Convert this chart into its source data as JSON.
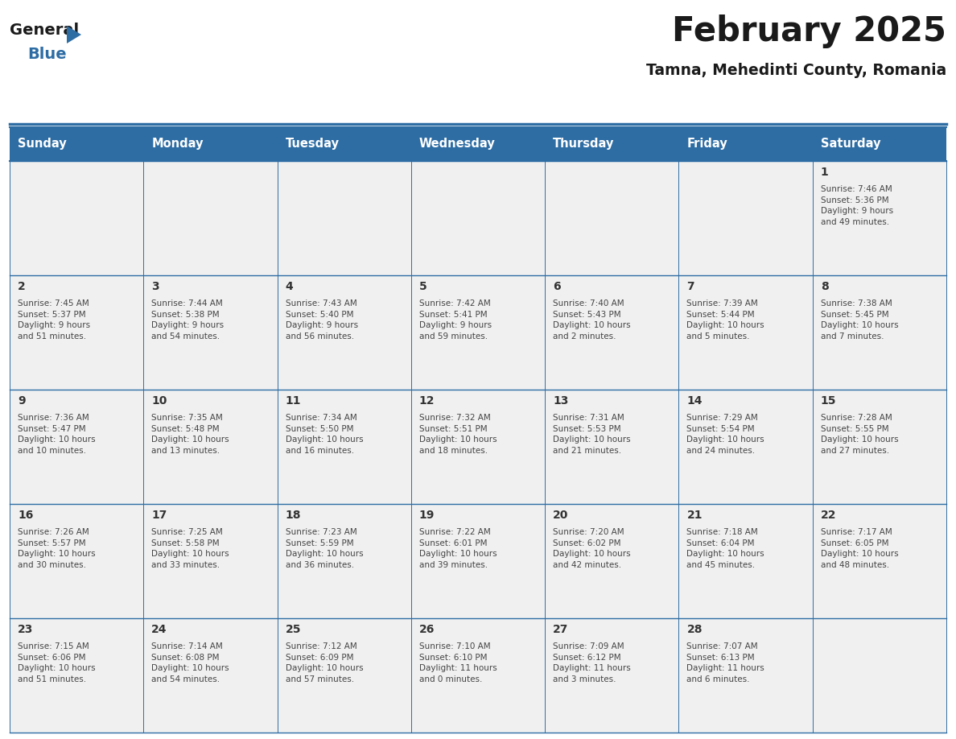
{
  "title": "February 2025",
  "subtitle": "Tamna, Mehedinti County, Romania",
  "header_bg": "#2E6DA4",
  "header_text": "#FFFFFF",
  "cell_bg": "#F0F0F0",
  "text_color": "#444444",
  "day_number_color": "#333333",
  "day_headers": [
    "Sunday",
    "Monday",
    "Tuesday",
    "Wednesday",
    "Thursday",
    "Friday",
    "Saturday"
  ],
  "weeks": [
    [
      {
        "day": "",
        "info": ""
      },
      {
        "day": "",
        "info": ""
      },
      {
        "day": "",
        "info": ""
      },
      {
        "day": "",
        "info": ""
      },
      {
        "day": "",
        "info": ""
      },
      {
        "day": "",
        "info": ""
      },
      {
        "day": "1",
        "info": "Sunrise: 7:46 AM\nSunset: 5:36 PM\nDaylight: 9 hours\nand 49 minutes."
      }
    ],
    [
      {
        "day": "2",
        "info": "Sunrise: 7:45 AM\nSunset: 5:37 PM\nDaylight: 9 hours\nand 51 minutes."
      },
      {
        "day": "3",
        "info": "Sunrise: 7:44 AM\nSunset: 5:38 PM\nDaylight: 9 hours\nand 54 minutes."
      },
      {
        "day": "4",
        "info": "Sunrise: 7:43 AM\nSunset: 5:40 PM\nDaylight: 9 hours\nand 56 minutes."
      },
      {
        "day": "5",
        "info": "Sunrise: 7:42 AM\nSunset: 5:41 PM\nDaylight: 9 hours\nand 59 minutes."
      },
      {
        "day": "6",
        "info": "Sunrise: 7:40 AM\nSunset: 5:43 PM\nDaylight: 10 hours\nand 2 minutes."
      },
      {
        "day": "7",
        "info": "Sunrise: 7:39 AM\nSunset: 5:44 PM\nDaylight: 10 hours\nand 5 minutes."
      },
      {
        "day": "8",
        "info": "Sunrise: 7:38 AM\nSunset: 5:45 PM\nDaylight: 10 hours\nand 7 minutes."
      }
    ],
    [
      {
        "day": "9",
        "info": "Sunrise: 7:36 AM\nSunset: 5:47 PM\nDaylight: 10 hours\nand 10 minutes."
      },
      {
        "day": "10",
        "info": "Sunrise: 7:35 AM\nSunset: 5:48 PM\nDaylight: 10 hours\nand 13 minutes."
      },
      {
        "day": "11",
        "info": "Sunrise: 7:34 AM\nSunset: 5:50 PM\nDaylight: 10 hours\nand 16 minutes."
      },
      {
        "day": "12",
        "info": "Sunrise: 7:32 AM\nSunset: 5:51 PM\nDaylight: 10 hours\nand 18 minutes."
      },
      {
        "day": "13",
        "info": "Sunrise: 7:31 AM\nSunset: 5:53 PM\nDaylight: 10 hours\nand 21 minutes."
      },
      {
        "day": "14",
        "info": "Sunrise: 7:29 AM\nSunset: 5:54 PM\nDaylight: 10 hours\nand 24 minutes."
      },
      {
        "day": "15",
        "info": "Sunrise: 7:28 AM\nSunset: 5:55 PM\nDaylight: 10 hours\nand 27 minutes."
      }
    ],
    [
      {
        "day": "16",
        "info": "Sunrise: 7:26 AM\nSunset: 5:57 PM\nDaylight: 10 hours\nand 30 minutes."
      },
      {
        "day": "17",
        "info": "Sunrise: 7:25 AM\nSunset: 5:58 PM\nDaylight: 10 hours\nand 33 minutes."
      },
      {
        "day": "18",
        "info": "Sunrise: 7:23 AM\nSunset: 5:59 PM\nDaylight: 10 hours\nand 36 minutes."
      },
      {
        "day": "19",
        "info": "Sunrise: 7:22 AM\nSunset: 6:01 PM\nDaylight: 10 hours\nand 39 minutes."
      },
      {
        "day": "20",
        "info": "Sunrise: 7:20 AM\nSunset: 6:02 PM\nDaylight: 10 hours\nand 42 minutes."
      },
      {
        "day": "21",
        "info": "Sunrise: 7:18 AM\nSunset: 6:04 PM\nDaylight: 10 hours\nand 45 minutes."
      },
      {
        "day": "22",
        "info": "Sunrise: 7:17 AM\nSunset: 6:05 PM\nDaylight: 10 hours\nand 48 minutes."
      }
    ],
    [
      {
        "day": "23",
        "info": "Sunrise: 7:15 AM\nSunset: 6:06 PM\nDaylight: 10 hours\nand 51 minutes."
      },
      {
        "day": "24",
        "info": "Sunrise: 7:14 AM\nSunset: 6:08 PM\nDaylight: 10 hours\nand 54 minutes."
      },
      {
        "day": "25",
        "info": "Sunrise: 7:12 AM\nSunset: 6:09 PM\nDaylight: 10 hours\nand 57 minutes."
      },
      {
        "day": "26",
        "info": "Sunrise: 7:10 AM\nSunset: 6:10 PM\nDaylight: 11 hours\nand 0 minutes."
      },
      {
        "day": "27",
        "info": "Sunrise: 7:09 AM\nSunset: 6:12 PM\nDaylight: 11 hours\nand 3 minutes."
      },
      {
        "day": "28",
        "info": "Sunrise: 7:07 AM\nSunset: 6:13 PM\nDaylight: 11 hours\nand 6 minutes."
      },
      {
        "day": "",
        "info": ""
      }
    ]
  ],
  "logo_general_color": "#1a1a1a",
  "logo_blue_color": "#2E6DA4",
  "logo_triangle_color": "#2E6DA4"
}
